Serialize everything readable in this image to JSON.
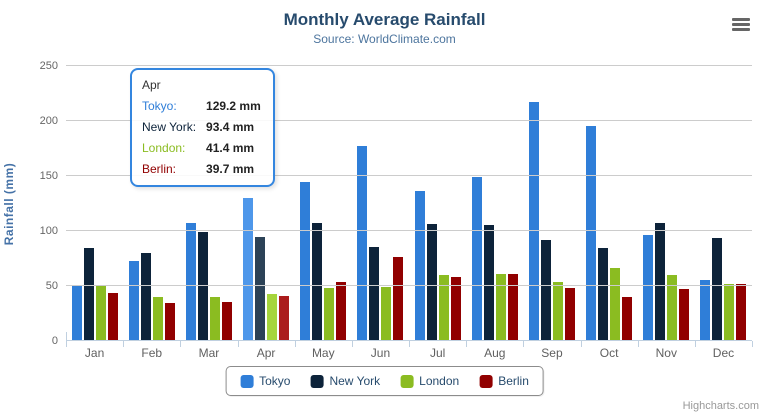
{
  "chart_data": {
    "type": "bar",
    "title": "Monthly Average Rainfall",
    "subtitle": "Source: WorldClimate.com",
    "categories": [
      "Jan",
      "Feb",
      "Mar",
      "Apr",
      "May",
      "Jun",
      "Jul",
      "Aug",
      "Sep",
      "Oct",
      "Nov",
      "Dec"
    ],
    "series": [
      {
        "name": "Tokyo",
        "color": "#2f7ed8",
        "hover_color": "#4e97ea",
        "values": [
          49.9,
          71.5,
          106.4,
          129.2,
          144.0,
          176.0,
          135.6,
          148.5,
          216.4,
          194.1,
          95.6,
          54.4
        ]
      },
      {
        "name": "New York",
        "color": "#0d233a",
        "hover_color": "#2c4257",
        "values": [
          83.6,
          78.8,
          98.5,
          93.4,
          106.0,
          84.5,
          105.0,
          104.3,
          91.2,
          83.5,
          106.6,
          92.3
        ]
      },
      {
        "name": "London",
        "color": "#8bbc21",
        "hover_color": "#a6d53c",
        "values": [
          48.9,
          38.8,
          39.3,
          41.4,
          47.0,
          48.3,
          59.0,
          59.6,
          52.4,
          65.2,
          59.3,
          51.2
        ]
      },
      {
        "name": "Berlin",
        "color": "#910000",
        "hover_color": "#ab1c1c",
        "values": [
          42.4,
          33.2,
          34.5,
          39.7,
          52.6,
          75.5,
          57.4,
          60.4,
          47.6,
          39.1,
          46.8,
          51.1
        ]
      }
    ],
    "xlabel": "",
    "ylabel": "Rainfall (mm)",
    "ylim": [
      0,
      250
    ],
    "yticks": [
      0,
      50,
      100,
      150,
      200,
      250
    ],
    "grid": true,
    "legend_position": "bottom",
    "hovered_category_index": 3,
    "unit": "mm"
  },
  "tooltip": {
    "header": "Apr",
    "rows": [
      {
        "label": "Tokyo:",
        "value": "129.2 mm",
        "color": "#2f7ed8"
      },
      {
        "label": "New York:",
        "value": "93.4 mm",
        "color": "#0d233a"
      },
      {
        "label": "London:",
        "value": "41.4 mm",
        "color": "#8bbc21"
      },
      {
        "label": "Berlin:",
        "value": "39.7 mm",
        "color": "#910000"
      }
    ]
  },
  "credits": "Highcharts.com"
}
